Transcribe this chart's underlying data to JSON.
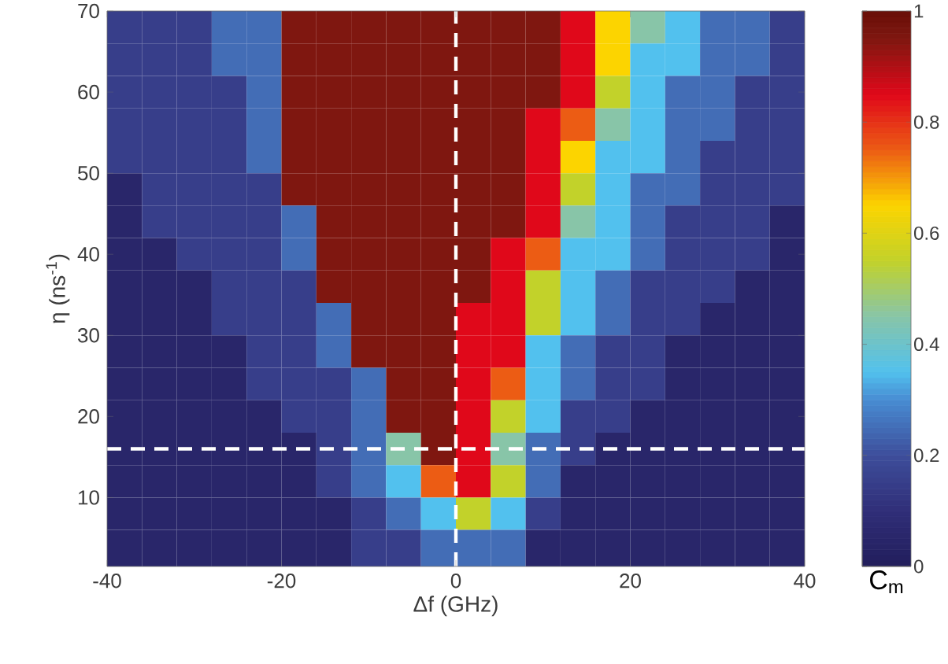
{
  "chart_data": {
    "type": "heatmap",
    "xlabel": "Δf (GHz)",
    "ylabel": "η (ns$^{-1}$)",
    "clabel": "C$_{m}$",
    "x": [
      -38,
      -34,
      -30,
      -26,
      -22,
      -18,
      -14,
      -10,
      -6,
      -2,
      2,
      6,
      10,
      14,
      18,
      22,
      26,
      30,
      34,
      38
    ],
    "y": [
      68,
      64,
      60,
      56,
      52,
      48,
      44,
      40,
      36,
      32,
      28,
      24,
      20,
      16,
      12,
      8,
      4
    ],
    "xlim": [
      -40,
      40
    ],
    "ylim": [
      1.5,
      70
    ],
    "xticks": [
      -40,
      -20,
      0,
      20,
      40
    ],
    "yticks": [
      10,
      20,
      30,
      40,
      50,
      60,
      70
    ],
    "clim": [
      0,
      1
    ],
    "cticks": [
      0,
      0.2,
      0.4,
      0.6,
      0.8,
      1
    ],
    "cells": [
      [
        0.15,
        0.15,
        0.15,
        0.25,
        0.25,
        0.95,
        0.95,
        0.95,
        0.95,
        0.95,
        0.95,
        0.95,
        0.95,
        0.85,
        0.65,
        0.45,
        0.35,
        0.25,
        0.25,
        0.15
      ],
      [
        0.15,
        0.15,
        0.15,
        0.25,
        0.25,
        0.95,
        0.95,
        0.95,
        0.95,
        0.95,
        0.95,
        0.95,
        0.95,
        0.85,
        0.65,
        0.35,
        0.35,
        0.25,
        0.25,
        0.15
      ],
      [
        0.15,
        0.15,
        0.15,
        0.15,
        0.25,
        0.95,
        0.95,
        0.95,
        0.95,
        0.95,
        0.95,
        0.95,
        0.95,
        0.85,
        0.55,
        0.35,
        0.25,
        0.25,
        0.15,
        0.15
      ],
      [
        0.15,
        0.15,
        0.15,
        0.15,
        0.25,
        0.95,
        0.95,
        0.95,
        0.95,
        0.95,
        0.95,
        0.95,
        0.85,
        0.75,
        0.45,
        0.35,
        0.25,
        0.25,
        0.15,
        0.15
      ],
      [
        0.15,
        0.15,
        0.15,
        0.15,
        0.25,
        0.95,
        0.95,
        0.95,
        0.95,
        0.95,
        0.95,
        0.95,
        0.85,
        0.65,
        0.35,
        0.35,
        0.25,
        0.15,
        0.15,
        0.15
      ],
      [
        0.05,
        0.15,
        0.15,
        0.15,
        0.15,
        0.95,
        0.95,
        0.95,
        0.95,
        0.95,
        0.95,
        0.95,
        0.85,
        0.55,
        0.35,
        0.25,
        0.25,
        0.15,
        0.15,
        0.15
      ],
      [
        0.05,
        0.15,
        0.15,
        0.15,
        0.15,
        0.25,
        0.95,
        0.95,
        0.95,
        0.95,
        0.95,
        0.95,
        0.85,
        0.45,
        0.35,
        0.25,
        0.15,
        0.15,
        0.15,
        0.05
      ],
      [
        0.05,
        0.05,
        0.15,
        0.15,
        0.15,
        0.25,
        0.95,
        0.95,
        0.95,
        0.95,
        0.95,
        0.85,
        0.75,
        0.35,
        0.35,
        0.25,
        0.15,
        0.15,
        0.15,
        0.05
      ],
      [
        0.05,
        0.05,
        0.05,
        0.15,
        0.15,
        0.15,
        0.95,
        0.95,
        0.95,
        0.95,
        0.95,
        0.85,
        0.55,
        0.35,
        0.25,
        0.15,
        0.15,
        0.15,
        0.05,
        0.05
      ],
      [
        0.05,
        0.05,
        0.05,
        0.15,
        0.15,
        0.15,
        0.25,
        0.95,
        0.95,
        0.95,
        0.85,
        0.85,
        0.55,
        0.35,
        0.25,
        0.15,
        0.15,
        0.05,
        0.05,
        0.05
      ],
      [
        0.05,
        0.05,
        0.05,
        0.05,
        0.15,
        0.15,
        0.25,
        0.95,
        0.95,
        0.95,
        0.85,
        0.85,
        0.35,
        0.25,
        0.15,
        0.15,
        0.05,
        0.05,
        0.05,
        0.05
      ],
      [
        0.05,
        0.05,
        0.05,
        0.05,
        0.15,
        0.15,
        0.15,
        0.25,
        0.95,
        0.95,
        0.85,
        0.75,
        0.35,
        0.25,
        0.15,
        0.15,
        0.05,
        0.05,
        0.05,
        0.05
      ],
      [
        0.05,
        0.05,
        0.05,
        0.05,
        0.05,
        0.15,
        0.15,
        0.25,
        0.95,
        0.95,
        0.85,
        0.55,
        0.35,
        0.15,
        0.15,
        0.05,
        0.05,
        0.05,
        0.05,
        0.05
      ],
      [
        0.05,
        0.05,
        0.05,
        0.05,
        0.05,
        0.05,
        0.15,
        0.25,
        0.45,
        0.95,
        0.85,
        0.45,
        0.25,
        0.15,
        0.05,
        0.05,
        0.05,
        0.05,
        0.05,
        0.05
      ],
      [
        0.05,
        0.05,
        0.05,
        0.05,
        0.05,
        0.05,
        0.15,
        0.25,
        0.35,
        0.75,
        0.85,
        0.55,
        0.25,
        0.05,
        0.05,
        0.05,
        0.05,
        0.05,
        0.05,
        0.05
      ],
      [
        0.05,
        0.05,
        0.05,
        0.05,
        0.05,
        0.05,
        0.05,
        0.15,
        0.25,
        0.35,
        0.55,
        0.35,
        0.15,
        0.05,
        0.05,
        0.05,
        0.05,
        0.05,
        0.05,
        0.05
      ],
      [
        0.05,
        0.05,
        0.05,
        0.05,
        0.05,
        0.05,
        0.05,
        0.15,
        0.15,
        0.25,
        0.25,
        0.25,
        0.05,
        0.05,
        0.05,
        0.05,
        0.05,
        0.05,
        0.05,
        0.05
      ]
    ],
    "ref_lines": [
      {
        "axis": "x",
        "value": 0,
        "color": "#ffffff",
        "line_style": "dashed"
      },
      {
        "axis": "y",
        "value": 16,
        "color": "#ffffff",
        "line_style": "dashed"
      }
    ]
  }
}
